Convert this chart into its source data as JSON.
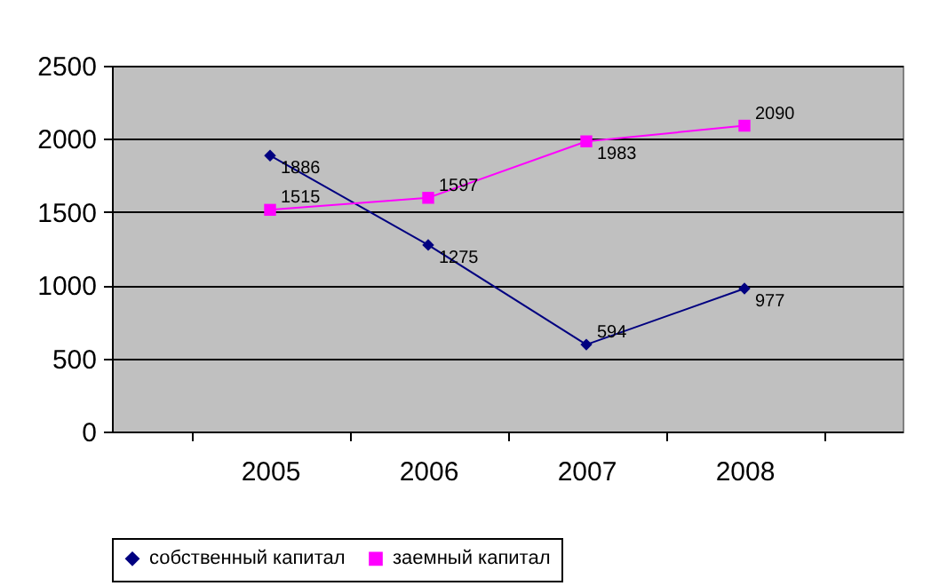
{
  "chart_data": {
    "type": "line",
    "categories": [
      "2005",
      "2006",
      "2007",
      "2008"
    ],
    "series": [
      {
        "name": "собственный капитал",
        "color": "#000080",
        "marker": "diamond",
        "values": [
          1886,
          1275,
          594,
          977
        ]
      },
      {
        "name": "заемный капитал",
        "color": "#ff00ff",
        "marker": "square",
        "values": [
          1515,
          1597,
          1983,
          2090
        ]
      }
    ],
    "ylim": [
      0,
      2500
    ],
    "yticks": [
      0,
      500,
      1000,
      1500,
      2000,
      2500
    ],
    "grid": "y",
    "legend": "bottom",
    "data_labels": true
  }
}
